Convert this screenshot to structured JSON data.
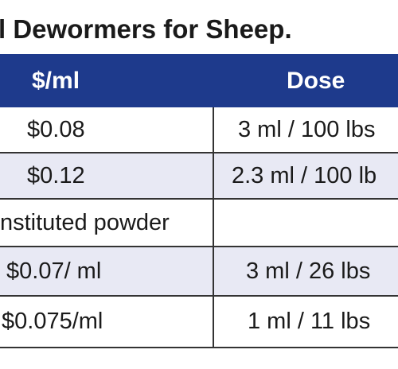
{
  "title": "l Dewormers for Sheep.",
  "columns": [
    "$/ml",
    "Dose"
  ],
  "rows": [
    {
      "price": "$0.08",
      "dose": "3 ml / 100 lbs"
    },
    {
      "price": "$0.12",
      "dose": "2.3 ml / 100 lb"
    },
    {
      "price": "nstituted powder",
      "dose": ""
    },
    {
      "price": "$0.07/ ml",
      "dose": "3 ml / 26 lbs"
    },
    {
      "price": "$0.075/ml",
      "dose": "1 ml / 11 lbs"
    }
  ],
  "colors": {
    "header_bg": "#1e3a8c",
    "header_text": "#ffffff",
    "shaded_row": "#e8e9f4",
    "border": "#333333"
  }
}
